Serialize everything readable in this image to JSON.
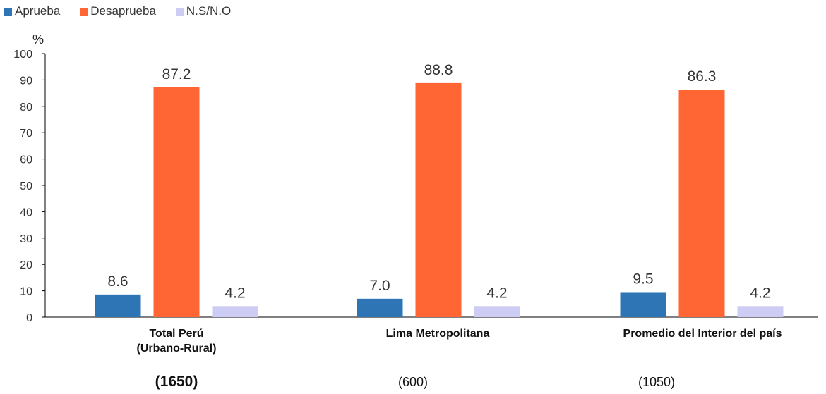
{
  "chart_data": {
    "type": "bar",
    "ylabel": "%",
    "ylim": [
      0,
      100
    ],
    "yticks": [
      0,
      10,
      20,
      30,
      40,
      50,
      60,
      70,
      80,
      90,
      100
    ],
    "categories": [
      {
        "line1": "Total Perú",
        "line2": "(Urbano-Rural)",
        "sample": "(1650)"
      },
      {
        "line1": "Lima Metropolitana",
        "line2": "",
        "sample": "(600)"
      },
      {
        "line1": "Promedio del Interior del país",
        "line2": "",
        "sample": "(1050)"
      }
    ],
    "series": [
      {
        "name": "Aprueba",
        "color": "#2e75b6",
        "values": [
          8.6,
          7.0,
          9.5
        ],
        "labels": [
          "8.6",
          "7.0",
          "9.5"
        ]
      },
      {
        "name": "Desaprueba",
        "color": "#ff6633",
        "values": [
          87.2,
          88.8,
          86.3
        ],
        "labels": [
          "87.2",
          "88.8",
          "86.3"
        ]
      },
      {
        "name": "N.S/N.O",
        "color": "#ccccf5",
        "values": [
          4.2,
          4.2,
          4.2
        ],
        "labels": [
          "4.2",
          "4.2",
          "4.2"
        ]
      }
    ],
    "legend_position": "top-left",
    "grid": false
  }
}
